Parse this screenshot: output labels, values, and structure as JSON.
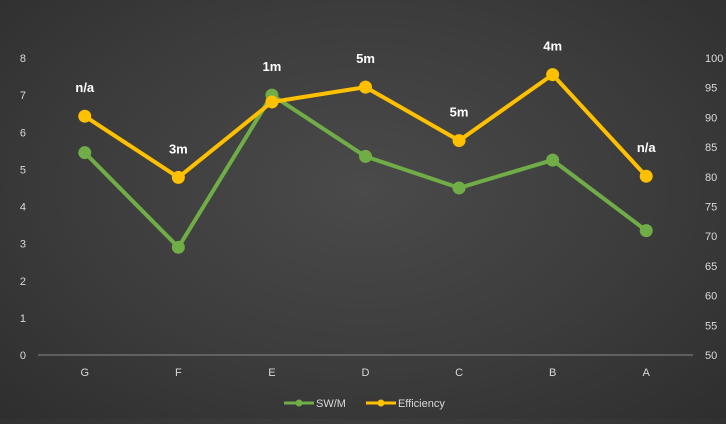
{
  "chart_data": {
    "type": "line",
    "categories": [
      "G",
      "F",
      "E",
      "D",
      "C",
      "B",
      "A"
    ],
    "series": [
      {
        "name": "SW/M",
        "axis": "left",
        "color": "#70ad47",
        "values": [
          5.45,
          2.9,
          7.0,
          5.35,
          4.5,
          5.25,
          3.35
        ]
      },
      {
        "name": "Efficiency",
        "axis": "right",
        "color": "#ffc000",
        "values": [
          90.2,
          79.9,
          92.6,
          95.1,
          86.1,
          97.2,
          80.1
        ]
      }
    ],
    "annotations": [
      "n/a",
      "3m",
      "1m",
      "5m",
      "5m",
      "4m",
      "n/a"
    ],
    "y_left": {
      "min": 0,
      "max": 8,
      "ticks": [
        "0",
        "1",
        "2",
        "3",
        "4",
        "5",
        "6",
        "7",
        "8"
      ]
    },
    "y_right": {
      "min": 50,
      "max": 100,
      "ticks": [
        "50",
        "55",
        "60",
        "65",
        "70",
        "75",
        "80",
        "85",
        "90",
        "95",
        "100"
      ]
    },
    "legend": {
      "position": "bottom",
      "entries": [
        "SW/M",
        "Efficiency"
      ]
    },
    "grid": false,
    "title": "",
    "xlabel": "",
    "ylabel": ""
  }
}
